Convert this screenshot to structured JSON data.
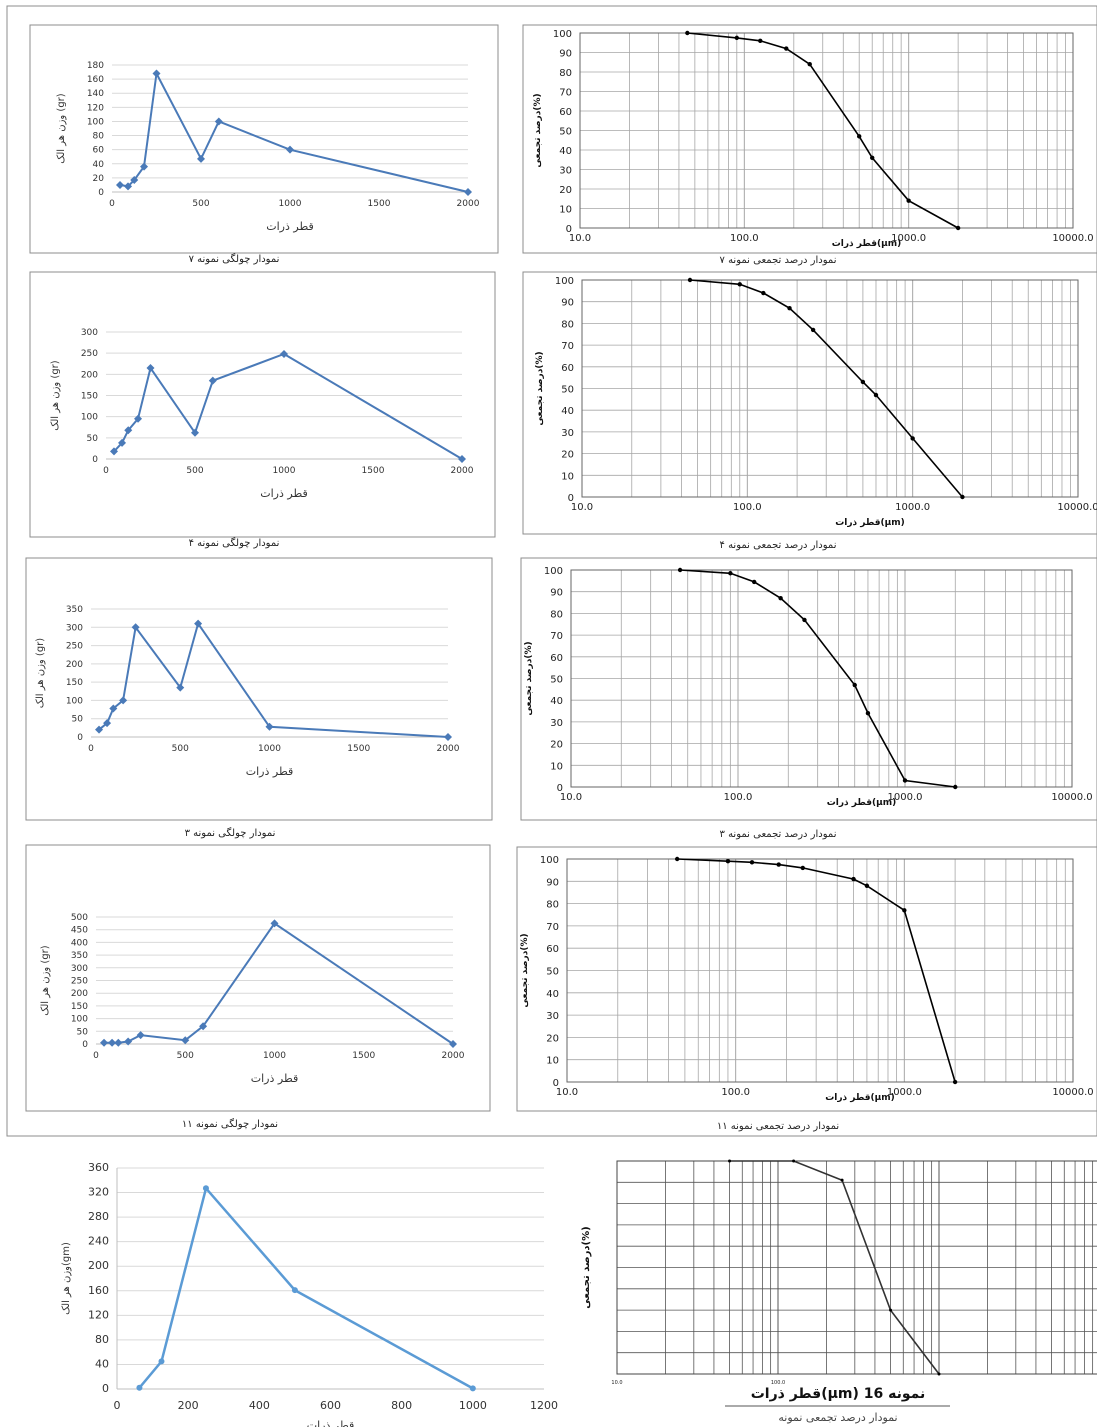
{
  "colors": {
    "histogram": "#4a7ab8",
    "histogram_last": "#5b9bd5",
    "cumulative": "#000000",
    "grid": "#a6a6a6",
    "frame": "#8c8c8c"
  },
  "chart_data": [
    {
      "id": "h7",
      "type": "line",
      "marker": "diamond",
      "caption": "نمودار چولگی نمونه ۷",
      "xlabel": "قطر ذرات",
      "ylabel": "وزن هر الک (gr)",
      "xlim": [
        0,
        2000
      ],
      "xticks": [
        0,
        500,
        1000,
        1500,
        2000
      ],
      "ylim": [
        0,
        180
      ],
      "yticks": [
        0,
        20,
        40,
        60,
        80,
        100,
        120,
        140,
        160,
        180
      ],
      "series": [
        {
          "x": [
            45,
            90,
            125,
            180,
            250,
            500,
            600,
            1000,
            2000
          ],
          "y": [
            10,
            8,
            17,
            36,
            168,
            47,
            100,
            60,
            0
          ]
        }
      ]
    },
    {
      "id": "c7",
      "type": "line",
      "xscale": "log",
      "caption": "نمودار درصد تجمعی نمونه ۷",
      "xlabel": "قطر ذرات(µm)",
      "ylabel": "درصد تجمعی(%)",
      "xlim": [
        10,
        10000
      ],
      "xticklabels": [
        "10.0",
        "100.0",
        "1000.0",
        "10000.0"
      ],
      "ylim": [
        0,
        100
      ],
      "yticks": [
        0,
        10,
        20,
        30,
        40,
        50,
        60,
        70,
        80,
        90,
        100
      ],
      "series": [
        {
          "x": [
            45,
            90,
            125,
            180,
            250,
            500,
            600,
            1000,
            2000
          ],
          "y": [
            100,
            97.5,
            96,
            92,
            84,
            47,
            36,
            14,
            0
          ]
        }
      ]
    },
    {
      "id": "h4",
      "type": "line",
      "marker": "diamond",
      "caption": "نمودار چولگی نمونه ۴",
      "xlabel": "قطر ذرات",
      "ylabel": "وزن هر الک (gr)",
      "xlim": [
        0,
        2000
      ],
      "xticks": [
        0,
        500,
        1000,
        1500,
        2000
      ],
      "ylim": [
        0,
        300
      ],
      "yticks": [
        0,
        50,
        100,
        150,
        200,
        250,
        300
      ],
      "series": [
        {
          "x": [
            45,
            90,
            125,
            180,
            250,
            500,
            600,
            1000,
            2000
          ],
          "y": [
            18,
            38,
            68,
            95,
            215,
            62,
            185,
            248,
            0
          ]
        }
      ]
    },
    {
      "id": "c4",
      "type": "line",
      "xscale": "log",
      "caption": "نمودار درصد تجمعی نمونه ۴",
      "xlabel": "قطر ذرات(µm)",
      "ylabel": "درصد تجمعی(%)",
      "xlim": [
        10,
        10000
      ],
      "xticklabels": [
        "10.0",
        "100.0",
        "1000.0",
        "10000.0"
      ],
      "ylim": [
        0,
        100
      ],
      "yticks": [
        0,
        10,
        20,
        30,
        40,
        50,
        60,
        70,
        80,
        90,
        100
      ],
      "series": [
        {
          "x": [
            45,
            90,
            125,
            180,
            250,
            500,
            600,
            1000,
            2000
          ],
          "y": [
            100,
            98,
            94,
            87,
            77,
            53,
            47,
            27,
            0
          ]
        }
      ]
    },
    {
      "id": "h3",
      "type": "line",
      "marker": "diamond",
      "caption": "نمودار چولگی نمونه ۳",
      "xlabel": "قطر ذرات",
      "ylabel": "وزن هر الک (gr)",
      "xlim": [
        0,
        2000
      ],
      "xticks": [
        0,
        500,
        1000,
        1500,
        2000
      ],
      "ylim": [
        0,
        350
      ],
      "yticks": [
        0,
        50,
        100,
        150,
        200,
        250,
        300,
        350
      ],
      "series": [
        {
          "x": [
            45,
            90,
            125,
            180,
            250,
            500,
            600,
            1000,
            2000
          ],
          "y": [
            20,
            38,
            78,
            100,
            300,
            135,
            310,
            28,
            0
          ]
        }
      ]
    },
    {
      "id": "c3",
      "type": "line",
      "xscale": "log",
      "caption": "نمودار درصد تجمعی نمونه ۳",
      "xlabel": "قطر ذرات(µm)",
      "ylabel": "درصد تجمعی(%)",
      "xlim": [
        10,
        10000
      ],
      "xticklabels": [
        "10.0",
        "100.0",
        "1000.0",
        "10000.0"
      ],
      "ylim": [
        0,
        100
      ],
      "yticks": [
        0,
        10,
        20,
        30,
        40,
        50,
        60,
        70,
        80,
        90,
        100
      ],
      "series": [
        {
          "x": [
            45,
            90,
            125,
            180,
            250,
            500,
            600,
            1000,
            2000
          ],
          "y": [
            100,
            98.5,
            94.5,
            87,
            77,
            47,
            34,
            3,
            0
          ]
        }
      ]
    },
    {
      "id": "h11",
      "type": "line",
      "marker": "diamond",
      "caption": "نمودار چولگی نمونه ۱۱",
      "xlabel": "قطر ذرات",
      "ylabel": "وزن هر الک (gr)",
      "xlim": [
        0,
        2000
      ],
      "xticks": [
        0,
        500,
        1000,
        1500,
        2000
      ],
      "ylim": [
        0,
        500
      ],
      "yticks": [
        0,
        50,
        100,
        150,
        200,
        250,
        300,
        350,
        400,
        450,
        500
      ],
      "series": [
        {
          "x": [
            45,
            90,
            125,
            180,
            250,
            500,
            600,
            1000,
            2000
          ],
          "y": [
            5,
            5,
            5,
            10,
            35,
            15,
            70,
            475,
            0
          ]
        }
      ]
    },
    {
      "id": "c11",
      "type": "line",
      "xscale": "log",
      "caption": "نمودار درصد تجمعی نمونه ۱۱",
      "xlabel": "قطر ذرات(µm)",
      "ylabel": "درصد تجمعی(%)",
      "xlim": [
        10,
        10000
      ],
      "xticklabels": [
        "10.0",
        "100.0",
        "1000.0",
        "10000.0"
      ],
      "ylim": [
        0,
        100
      ],
      "yticks": [
        0,
        10,
        20,
        30,
        40,
        50,
        60,
        70,
        80,
        90,
        100
      ],
      "series": [
        {
          "x": [
            45,
            90,
            125,
            180,
            250,
            500,
            600,
            1000,
            2000
          ],
          "y": [
            100,
            99,
            98.5,
            97.5,
            96,
            91,
            88,
            77,
            0
          ]
        }
      ]
    },
    {
      "id": "h16",
      "type": "line",
      "marker": "circle",
      "xlabel": "قطر ذرات",
      "ylabel": "وزن هر الک(gm)",
      "xlim": [
        0,
        1200
      ],
      "xticks": [
        0,
        200,
        400,
        600,
        800,
        1000,
        1200
      ],
      "ylim": [
        0,
        360
      ],
      "yticks": [
        0,
        40,
        80,
        120,
        160,
        200,
        240,
        280,
        320,
        360
      ],
      "series": [
        {
          "x": [
            63,
            125,
            250,
            500,
            1000
          ],
          "y": [
            2,
            45,
            327,
            161,
            1
          ]
        }
      ]
    },
    {
      "id": "c16",
      "type": "line",
      "xscale": "log",
      "caption_bold": "قطر ذرات(µm) نمونه 16",
      "caption": "نمودار درصد تجمعی نمونه",
      "ylabel": "درصد تجمعی(%)",
      "xlim": [
        10,
        10000
      ],
      "xticklabels": [
        "10.0",
        "100.0"
      ],
      "ylim": [
        0,
        100
      ],
      "series": [
        {
          "x": [
            50,
            125,
            250,
            500,
            1000
          ],
          "y": [
            100,
            100,
            91,
            30,
            0
          ]
        }
      ]
    }
  ]
}
